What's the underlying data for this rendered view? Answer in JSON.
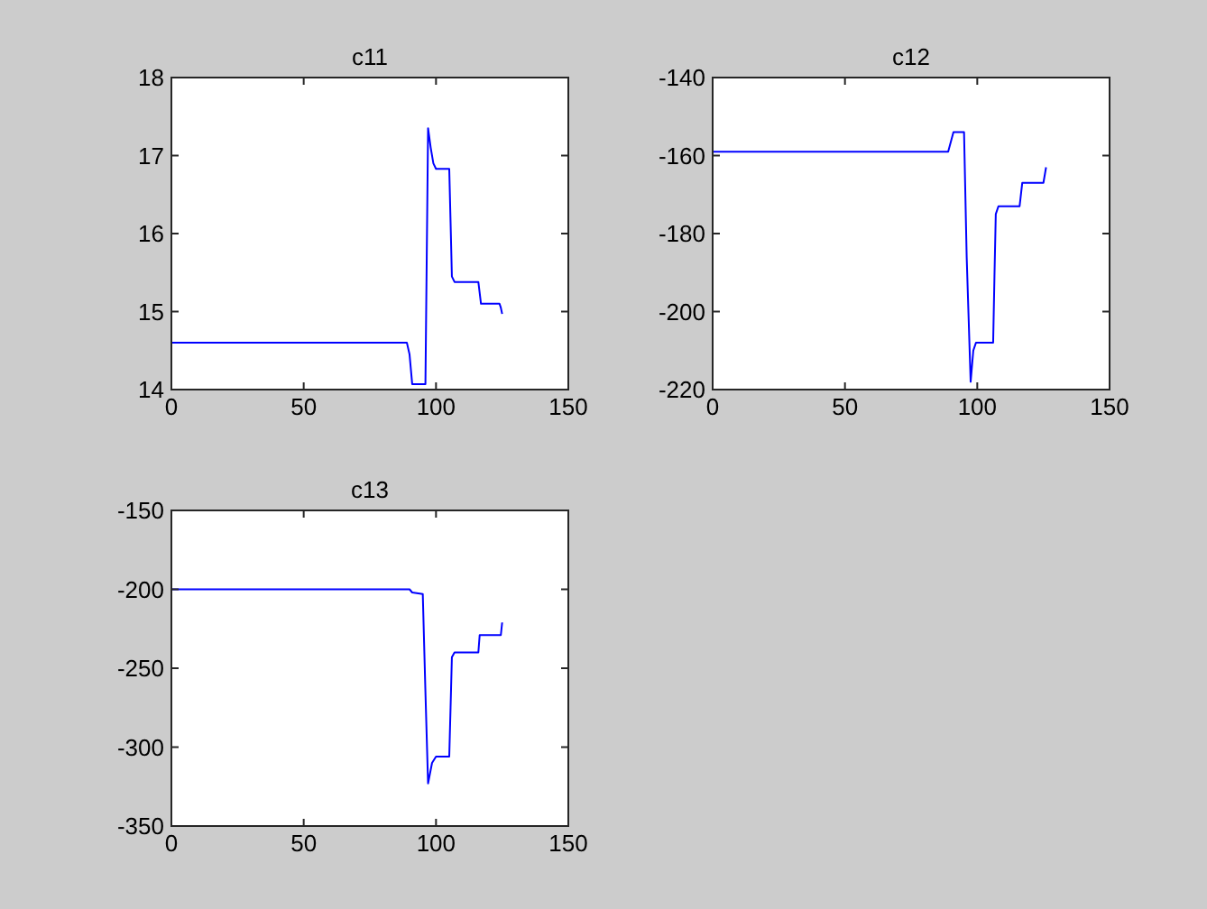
{
  "chart_data": [
    {
      "type": "line",
      "title": "c11",
      "xlim": [
        0,
        150
      ],
      "xticks": [
        0,
        50,
        100,
        150
      ],
      "ylim": [
        14,
        18
      ],
      "yticks": [
        14,
        15,
        16,
        17,
        18
      ],
      "grid": false,
      "series": [
        {
          "color": "#0000ff",
          "x": [
            0,
            89,
            90,
            91,
            96,
            96.5,
            97,
            98,
            99,
            100,
            105,
            105.5,
            106,
            107,
            116,
            117,
            124,
            124.5,
            125
          ],
          "values": [
            14.6,
            14.6,
            14.45,
            14.07,
            14.07,
            15.7,
            17.35,
            17.1,
            16.9,
            16.83,
            16.83,
            16.15,
            15.45,
            15.38,
            15.38,
            15.1,
            15.1,
            15.05,
            14.97
          ]
        }
      ]
    },
    {
      "type": "line",
      "title": "c12",
      "xlim": [
        0,
        150
      ],
      "xticks": [
        0,
        50,
        100,
        150
      ],
      "ylim": [
        -220,
        -140
      ],
      "yticks": [
        -220,
        -200,
        -180,
        -160,
        -140
      ],
      "grid": false,
      "series": [
        {
          "color": "#0000ff",
          "x": [
            0,
            89,
            91,
            95,
            96,
            97.5,
            98.5,
            99.5,
            106,
            106.5,
            107,
            108,
            116,
            117,
            125,
            126
          ],
          "values": [
            -159,
            -159,
            -154,
            -154,
            -186,
            -218,
            -210,
            -208,
            -208,
            -191,
            -175,
            -173,
            -173,
            -167,
            -167,
            -163
          ]
        }
      ]
    },
    {
      "type": "line",
      "title": "c13",
      "xlim": [
        0,
        150
      ],
      "xticks": [
        0,
        50,
        100,
        150
      ],
      "ylim": [
        -350,
        -150
      ],
      "yticks": [
        -350,
        -300,
        -250,
        -200,
        -150
      ],
      "grid": false,
      "series": [
        {
          "color": "#0000ff",
          "x": [
            0,
            90,
            91,
            95,
            96,
            97,
            98.5,
            100,
            105,
            105.5,
            106,
            107,
            116,
            116.5,
            124.5,
            125
          ],
          "values": [
            -200,
            -200,
            -202,
            -203,
            -265,
            -323,
            -310,
            -306,
            -306,
            -275,
            -243,
            -240,
            -240,
            -229,
            -229,
            -221
          ]
        }
      ]
    }
  ]
}
